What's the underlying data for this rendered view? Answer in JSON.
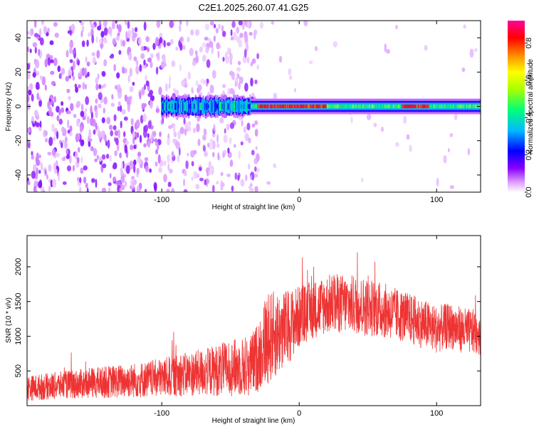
{
  "figure": {
    "title": "C2E1.2025.260.07.41.G25"
  },
  "chart_data": [
    {
      "type": "heatmap",
      "title": "C2E1.2025.260.07.41.G25",
      "xlabel": "Height of straight line (km)",
      "ylabel": "Frequency (Hz)",
      "xlim": [
        -198,
        132
      ],
      "ylim": [
        -50,
        50
      ],
      "x_ticks": [
        -100,
        0,
        100
      ],
      "y_ticks": [
        -40,
        -20,
        0,
        20,
        40
      ],
      "colorbar": {
        "label": "Normalized spectral amplitude",
        "range": [
          0.0,
          0.92
        ],
        "ticks": [
          0.0,
          0.2,
          0.4,
          0.6,
          0.8
        ],
        "colormap": [
          "#ffffff",
          "#cc77ff",
          "#7700ff",
          "#0000ff",
          "#00bbff",
          "#00ff66",
          "#ffff00",
          "#ff8800",
          "#ff0000",
          "#ff00aa"
        ]
      },
      "signal_band": {
        "center_hz": 0,
        "start_km": -100,
        "end_km": 132,
        "strong_segments_km": [
          [
            -30,
            20
          ],
          [
            75,
            95
          ]
        ]
      },
      "noise_region_km": [
        -198,
        -30
      ]
    },
    {
      "type": "line",
      "xlabel": "Height of straight line (km)",
      "ylabel": "SNR (10 * v/v)",
      "xlim": [
        -198,
        132
      ],
      "ylim": [
        0,
        2450
      ],
      "x_ticks": [
        -100,
        0,
        100
      ],
      "y_ticks": [
        500,
        1000,
        1500,
        2000
      ],
      "color": "#ee3333",
      "series": [
        {
          "name": "SNR",
          "envelope_x": [
            -198,
            -170,
            -140,
            -110,
            -90,
            -70,
            -50,
            -35,
            -30,
            -25,
            -20,
            -10,
            0,
            10,
            20,
            30,
            40,
            50,
            60,
            70,
            80,
            90,
            100,
            110,
            120,
            132
          ],
          "envelope_mean": [
            250,
            300,
            340,
            380,
            430,
            480,
            540,
            580,
            700,
            920,
            1000,
            1100,
            1280,
            1380,
            1460,
            1470,
            1450,
            1420,
            1380,
            1320,
            1260,
            1180,
            1100,
            1150,
            1080,
            1050
          ],
          "envelope_amp": [
            180,
            200,
            230,
            260,
            300,
            340,
            400,
            450,
            500,
            650,
            650,
            560,
            450,
            420,
            430,
            430,
            430,
            420,
            400,
            380,
            360,
            360,
            340,
            330,
            330,
            320
          ]
        }
      ]
    }
  ]
}
